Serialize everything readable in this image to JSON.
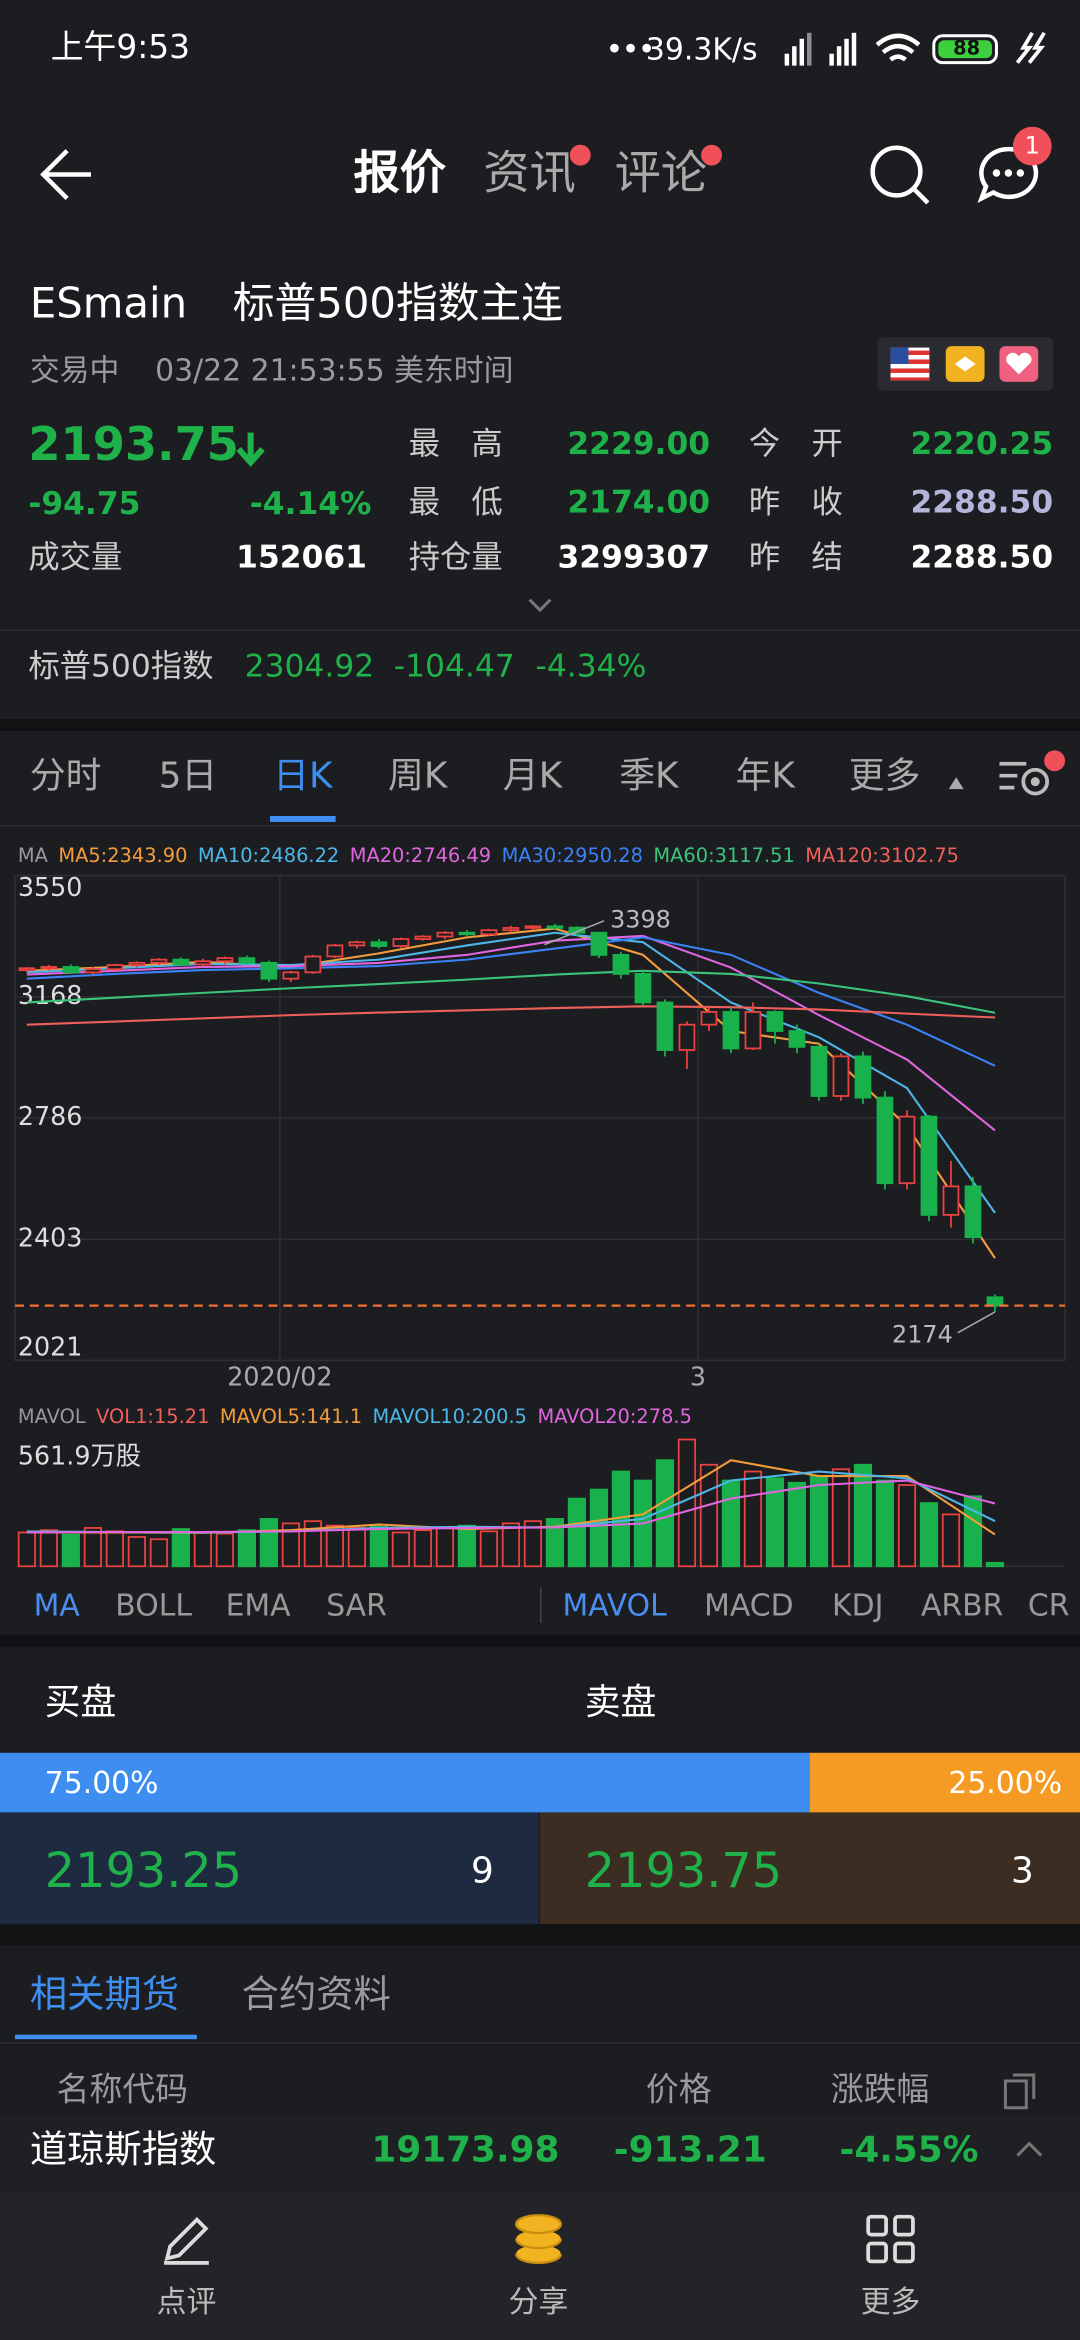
{
  "status_bar": {
    "time": "上午9:53",
    "network": "39.3K/s",
    "battery": "88"
  },
  "nav": {
    "tabs": [
      "报价",
      "资讯",
      "评论"
    ],
    "badge": "1"
  },
  "instrument": {
    "code": "ESmain",
    "name": "标普500指数主连",
    "status": "交易中",
    "time": "03/22 21:53:55 美东时间"
  },
  "quote": {
    "price": "2193.75",
    "change": "-94.75",
    "change_pct": "-4.14%",
    "volume_label": "成交量",
    "volume": "152061",
    "rows": [
      [
        {
          "label": "最　高",
          "value": "2229.00",
          "color": "#1fb24a"
        },
        {
          "label": "今　开",
          "value": "2220.25",
          "color": "#1fb24a"
        }
      ],
      [
        {
          "label": "最　低",
          "value": "2174.00",
          "color": "#1fb24a"
        },
        {
          "label": "昨　收",
          "value": "2288.50",
          "color": "#b5b5dc"
        }
      ],
      [
        {
          "label": "持仓量",
          "value": "3299307",
          "color": "#ffffff"
        },
        {
          "label": "昨　结",
          "value": "2288.50",
          "color": "#ffffff"
        }
      ]
    ]
  },
  "index_quote": {
    "name": "标普500指数",
    "price": "2304.92",
    "change": "-104.47",
    "change_pct": "-4.34%"
  },
  "period_tabs": {
    "items": [
      "分时",
      "5日",
      "日K",
      "周K",
      "月K",
      "季K",
      "年K",
      "更多"
    ],
    "active": 2
  },
  "kline": {
    "type": "candlestick",
    "ma_title": "MA",
    "ylim": [
      2021,
      3550
    ],
    "yticks": [
      3550,
      3168,
      2786,
      2403,
      2021
    ],
    "xticks": [
      {
        "value": 11.5,
        "label": "2020/02"
      },
      {
        "value": 30.5,
        "label": "3"
      }
    ],
    "up_color": "#e8433f",
    "down_color": "#19b14b",
    "candles": [
      [
        3252,
        3262,
        3245,
        3258
      ],
      [
        3258,
        3268,
        3250,
        3262
      ],
      [
        3262,
        3270,
        3240,
        3245
      ],
      [
        3245,
        3262,
        3238,
        3255
      ],
      [
        3255,
        3272,
        3250,
        3268
      ],
      [
        3268,
        3280,
        3260,
        3275
      ],
      [
        3275,
        3290,
        3268,
        3285
      ],
      [
        3285,
        3292,
        3265,
        3270
      ],
      [
        3270,
        3288,
        3262,
        3280
      ],
      [
        3280,
        3295,
        3270,
        3290
      ],
      [
        3290,
        3298,
        3270,
        3275
      ],
      [
        3275,
        3282,
        3215,
        3225
      ],
      [
        3225,
        3250,
        3215,
        3245
      ],
      [
        3245,
        3300,
        3240,
        3295
      ],
      [
        3295,
        3335,
        3290,
        3330
      ],
      [
        3330,
        3345,
        3320,
        3340
      ],
      [
        3340,
        3350,
        3320,
        3328
      ],
      [
        3328,
        3355,
        3322,
        3350
      ],
      [
        3350,
        3362,
        3345,
        3358
      ],
      [
        3358,
        3375,
        3350,
        3370
      ],
      [
        3370,
        3378,
        3360,
        3365
      ],
      [
        3365,
        3382,
        3360,
        3378
      ],
      [
        3378,
        3392,
        3370,
        3385
      ],
      [
        3385,
        3394,
        3378,
        3390
      ],
      [
        3390,
        3398,
        3380,
        3386
      ],
      [
        3386,
        3390,
        3360,
        3370
      ],
      [
        3370,
        3372,
        3290,
        3300
      ],
      [
        3300,
        3310,
        3225,
        3240
      ],
      [
        3240,
        3250,
        3140,
        3150
      ],
      [
        3150,
        3160,
        2980,
        3000
      ],
      [
        3000,
        3090,
        2940,
        3080
      ],
      [
        3080,
        3140,
        3060,
        3120
      ],
      [
        3120,
        3135,
        2990,
        3005
      ],
      [
        3005,
        3150,
        3000,
        3120
      ],
      [
        3120,
        3125,
        3020,
        3060
      ],
      [
        3060,
        3080,
        2990,
        3010
      ],
      [
        3010,
        3020,
        2840,
        2855
      ],
      [
        2855,
        2990,
        2840,
        2980
      ],
      [
        2980,
        2995,
        2830,
        2850
      ],
      [
        2850,
        2870,
        2560,
        2580
      ],
      [
        2580,
        2810,
        2560,
        2790
      ],
      [
        2790,
        2795,
        2460,
        2480
      ],
      [
        2480,
        2650,
        2440,
        2570
      ],
      [
        2570,
        2600,
        2390,
        2410
      ],
      [
        2220.25,
        2229.0,
        2174.0,
        2193.75
      ]
    ],
    "max_label": 3398,
    "min_label": 2174,
    "ma_x": [
      0,
      4,
      8,
      12,
      16,
      20,
      24,
      28,
      32,
      36,
      40,
      44
    ],
    "ma": [
      {
        "name": "MA5:2343.90",
        "color": "#f39c3c",
        "values": [
          3250,
          3262,
          3278,
          3262,
          3305,
          3355,
          3383,
          3300,
          3060,
          3020,
          2760,
          2343.9
        ]
      },
      {
        "name": "MA10:2486.22",
        "color": "#4db6e8",
        "values": [
          3245,
          3258,
          3272,
          3268,
          3285,
          3330,
          3370,
          3340,
          3150,
          3040,
          2880,
          2486.22
        ]
      },
      {
        "name": "MA20:2746.49",
        "color": "#e066e0",
        "values": [
          3238,
          3250,
          3262,
          3265,
          3275,
          3300,
          3345,
          3360,
          3260,
          3110,
          2970,
          2746.49
        ]
      },
      {
        "name": "MA30:2950.28",
        "color": "#3b82f6",
        "values": [
          3225,
          3240,
          3252,
          3258,
          3265,
          3285,
          3320,
          3355,
          3300,
          3180,
          3080,
          2950.28
        ]
      },
      {
        "name": "MA60:3117.51",
        "color": "#3cc47c",
        "values": [
          3150,
          3165,
          3180,
          3195,
          3208,
          3222,
          3238,
          3250,
          3240,
          3210,
          3170,
          3117.51
        ]
      },
      {
        "name": "MA120:3102.75",
        "color": "#f0605a",
        "values": [
          3080,
          3090,
          3100,
          3110,
          3118,
          3125,
          3132,
          3138,
          3135,
          3128,
          3115,
          3102.75
        ]
      }
    ],
    "volume": {
      "title": "MAVOL",
      "vol_legend": {
        "text": "VOL1:15.21",
        "color": "#f0605a"
      },
      "vol_max": {
        "value": 561.9,
        "label": "561.9万股"
      },
      "values": [
        150,
        160,
        140,
        170,
        155,
        130,
        120,
        165,
        150,
        145,
        160,
        210,
        190,
        200,
        180,
        170,
        175,
        150,
        160,
        170,
        180,
        155,
        190,
        200,
        210,
        300,
        340,
        420,
        380,
        470,
        561.9,
        450,
        380,
        420,
        390,
        370,
        400,
        430,
        450,
        380,
        360,
        280,
        230,
        310,
        15.21
      ],
      "ma": [
        {
          "name": "MAVOL5:141.1",
          "color": "#f39c3c",
          "values": [
            150,
            150,
            148,
            160,
            185,
            165,
            175,
            230,
            470,
            400,
            400,
            141.1
          ]
        },
        {
          "name": "MAVOL10:200.5",
          "color": "#4db6e8",
          "values": [
            155,
            152,
            150,
            155,
            170,
            175,
            172,
            210,
            380,
            420,
            390,
            200.5
          ]
        },
        {
          "name": "MAVOL20:278.5",
          "color": "#e066e0",
          "values": [
            150,
            152,
            152,
            155,
            165,
            170,
            172,
            190,
            300,
            360,
            380,
            278.5
          ]
        }
      ]
    }
  },
  "indicator_tabs": {
    "main": [
      "MA",
      "BOLL",
      "EMA",
      "SAR"
    ],
    "main_active": 0,
    "sub": [
      "MAVOL",
      "MACD",
      "KDJ",
      "ARBR",
      "CR"
    ],
    "sub_active": 0
  },
  "order_book": {
    "buy_title": "买盘",
    "sell_title": "卖盘",
    "buy_share": {
      "value": 75,
      "label": "75.00%"
    },
    "sell_share": {
      "value": 25,
      "label": "25.00%"
    },
    "buy_price": "2193.25",
    "buy_qty": "9",
    "sell_price": "2193.75",
    "sell_qty": "3"
  },
  "related": {
    "tabs": [
      "相关期货",
      "合约资料"
    ],
    "header": [
      "名称代码",
      "价格",
      "涨跌幅"
    ],
    "rows": [
      [
        "道琼斯指数",
        "19173.98",
        "-913.21",
        "-4.55%"
      ]
    ]
  },
  "bottom_nav": [
    "点评",
    "分享",
    "更多"
  ]
}
